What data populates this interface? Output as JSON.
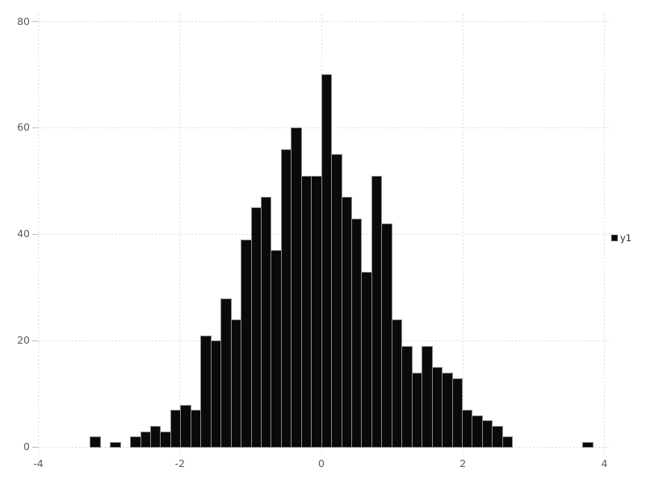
{
  "legend": {
    "label": "y1",
    "swatch_color": "#0a0a0a"
  },
  "colors": {
    "bar_fill": "#0a0a0a",
    "bar_border": "#8a8a8a",
    "gridline": "#d0d2de",
    "tick_label": "#5c5c5c",
    "background": "#ffffff"
  },
  "chart_data": {
    "type": "bar",
    "subtype": "histogram",
    "title": "",
    "xlabel": "",
    "ylabel": "",
    "legend_entries": [
      "y1"
    ],
    "legend_position": "right-middle",
    "grid": "dotted",
    "xlim": [
      -4,
      4
    ],
    "ylim": [
      0,
      80
    ],
    "x_ticks": [
      -4,
      -2,
      0,
      2,
      4
    ],
    "y_ticks": [
      0,
      20,
      40,
      60,
      80
    ],
    "bin_start": -3.272,
    "bin_width": 0.1421,
    "bin_count": 50,
    "total_count": 1000,
    "values": [
      2,
      0,
      1,
      0,
      2,
      3,
      4,
      3,
      7,
      8,
      7,
      21,
      20,
      28,
      24,
      39,
      45,
      47,
      37,
      56,
      60,
      51,
      51,
      70,
      55,
      47,
      43,
      33,
      51,
      42,
      24,
      19,
      14,
      19,
      15,
      14,
      13,
      7,
      6,
      5,
      4,
      2,
      0,
      0,
      0,
      0,
      0,
      0,
      0,
      1
    ]
  }
}
